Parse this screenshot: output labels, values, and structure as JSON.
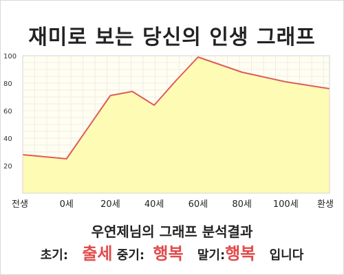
{
  "page_title": "재미로 보는 당신의 인생 그래프",
  "chart_data": {
    "type": "area",
    "title": "재미로 보는 당신의 인생 그래프",
    "x_categories": [
      "전생",
      "0세",
      "20세",
      "40세",
      "60세",
      "80세",
      "100세",
      "환생"
    ],
    "y_ticks": [
      20,
      40,
      60,
      80,
      100
    ],
    "ylim": [
      0,
      100
    ],
    "points": [
      {
        "x": "전생",
        "y": 28
      },
      {
        "x": "0세",
        "y": 25
      },
      {
        "x": "20세",
        "y": 71
      },
      {
        "x": "30세",
        "y": 74
      },
      {
        "x": "40세",
        "y": 64
      },
      {
        "x": "50세",
        "y": 82
      },
      {
        "x": "60세",
        "y": 99
      },
      {
        "x": "80세",
        "y": 88
      },
      {
        "x": "100세",
        "y": 81
      },
      {
        "x": "환생",
        "y": 76
      }
    ],
    "colors": {
      "fill": "#fefbb5",
      "line": "#e05a5a",
      "plot_bg": "#fffef0",
      "grid": "#ececec"
    },
    "grid": true
  },
  "result": {
    "title": "우연제님의 그래프 분석결과",
    "early_label": "초기:",
    "early_value": "출세",
    "mid_label": "중기:",
    "mid_value": "행복",
    "late_label": "말기:",
    "late_value": "행복",
    "ending": "입니다"
  }
}
